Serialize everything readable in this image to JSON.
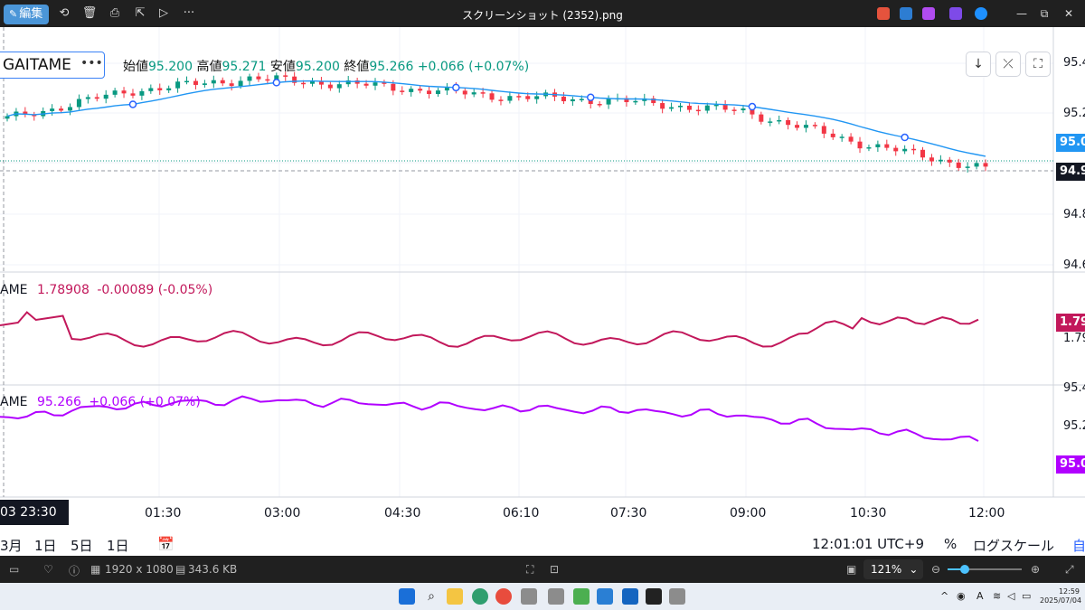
{
  "viewer": {
    "edit_label": "編集",
    "title": "スクリーンショット (2352).png",
    "dimensions": "1920 x 1080",
    "file_size": "343.6 KB",
    "zoom": "121%"
  },
  "chart": {
    "symbol": "GAITAME",
    "symbol_more": "•••",
    "ohlc": {
      "open_label": "始値",
      "open": "95.200",
      "high_label": "高値",
      "high": "95.271",
      "low_label": "安値",
      "low": "95.200",
      "close_label": "終値",
      "close": "95.266",
      "change": "+0.066 (+0.07%)"
    },
    "pane2": {
      "prefix": "AME",
      "value": "1.78908",
      "change": "-0.00089 (-0.05%)"
    },
    "pane3": {
      "prefix": "AME",
      "value": "95.266",
      "change": "+0.066 (+0.07%)"
    },
    "main_axis": [
      "95.4",
      "95.2",
      "95.0",
      "94.9",
      "94.8",
      "94.6"
    ],
    "pane2_axis": [
      "1.79",
      "1.79"
    ],
    "pane3_axis": [
      "95.4",
      "95.2",
      "95.0"
    ],
    "time_cursor": "03  23:30",
    "time_ticks": [
      "01:30",
      "03:00",
      "04:30",
      "06:10",
      "07:30",
      "09:00",
      "10:30",
      "12:00"
    ],
    "ranges": [
      "3月",
      "1日",
      "5日",
      "1日"
    ],
    "clock_text": "12:01:01 UTC+9",
    "percent": "%",
    "log_scale": "ログスケール",
    "auto": "自"
  },
  "taskbar": {
    "time": "12:59",
    "date": "2025/07/04"
  },
  "chart_data": {
    "type": "line",
    "x": [
      "23:30",
      "01:30",
      "03:00",
      "04:30",
      "06:10",
      "07:30",
      "09:00",
      "10:30",
      "12:00"
    ],
    "series": [
      {
        "values": [
          95.18,
          95.29,
          95.34,
          95.31,
          95.27,
          95.25,
          95.21,
          95.08,
          94.98
        ]
      }
    ]
  },
  "colors": {
    "up": "#089981",
    "down": "#f23645",
    "ma": "#2196f3",
    "pane2": "#c2185b",
    "pane3": "#b100ff",
    "price_blue": "#2196f3",
    "dark": "#131722"
  }
}
